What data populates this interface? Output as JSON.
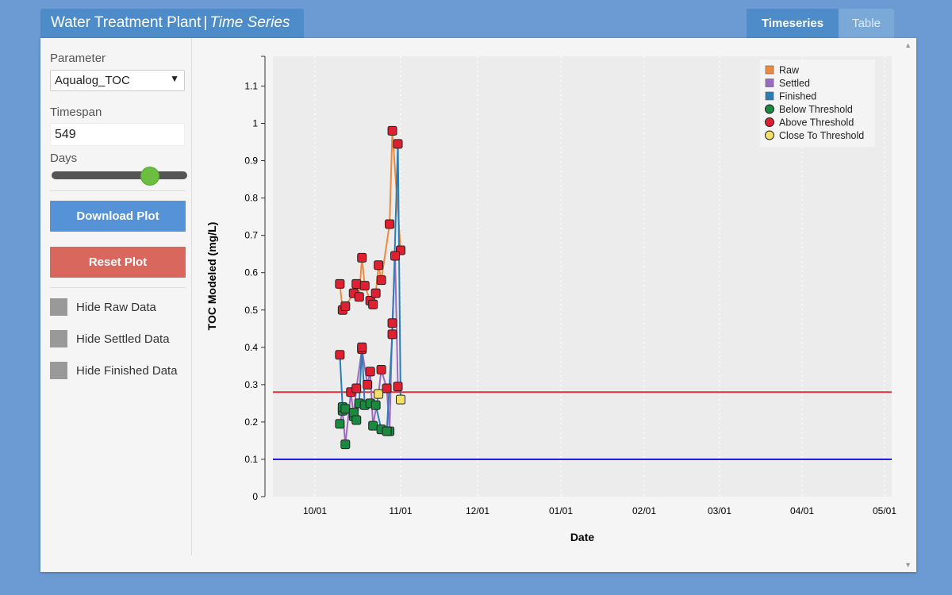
{
  "app": {
    "title_main": "Water Treatment Plant",
    "title_sep": "|",
    "title_sub": "Time Series"
  },
  "tabs": [
    {
      "label": "Timeseries",
      "active": true
    },
    {
      "label": "Table",
      "active": false
    }
  ],
  "sidebar": {
    "parameter_label": "Parameter",
    "parameter_value": "Aqualog_TOC",
    "timespan_label": "Timespan",
    "timespan_value": "549",
    "days_label": "Days",
    "slider_value": 549,
    "download_label": "Download Plot",
    "reset_label": "Reset Plot",
    "checkboxes": [
      {
        "label": "Hide Raw Data"
      },
      {
        "label": "Hide Settled Data"
      },
      {
        "label": "Hide Finished Data"
      }
    ]
  },
  "colors": {
    "raw": "#f0883e",
    "settled": "#9b6bbf",
    "finished": "#2a7db5",
    "below": "#1a8a40",
    "above": "#e02030",
    "close": "#f5e067",
    "upper_threshold": "#e0323c",
    "lower_threshold": "#2020e0"
  },
  "chart_data": {
    "type": "line",
    "xlabel": "Date",
    "ylabel": "TOC Modeled (mg/L)",
    "x_ticks": [
      "10/01",
      "11/01",
      "12/01",
      "01/01",
      "02/01",
      "03/01",
      "04/01",
      "05/01"
    ],
    "y_ticks": [
      "0",
      "0.1",
      "0.2",
      "0.3",
      "0.4",
      "0.5",
      "0.6",
      "0.7",
      "0.8",
      "0.9",
      "1",
      "1.1"
    ],
    "ylim": [
      0,
      1.18
    ],
    "grid": "vertical dotted",
    "legend_position": "top-right",
    "legend": [
      {
        "label": "Raw",
        "marker": "square",
        "color_key": "raw"
      },
      {
        "label": "Settled",
        "marker": "square",
        "color_key": "settled"
      },
      {
        "label": "Finished",
        "marker": "square",
        "color_key": "finished"
      },
      {
        "label": "Below Threshold",
        "marker": "circle",
        "color_key": "below"
      },
      {
        "label": "Above Threshold",
        "marker": "circle",
        "color_key": "above"
      },
      {
        "label": "Close To Threshold",
        "marker": "circle",
        "color_key": "close"
      }
    ],
    "thresholds": [
      {
        "value": 0.28,
        "color_key": "upper_threshold"
      },
      {
        "value": 0.1,
        "color_key": "lower_threshold"
      }
    ],
    "series": [
      {
        "name": "Raw",
        "color_key": "raw",
        "points": [
          {
            "date": "10/10",
            "y": 0.57,
            "status": "above"
          },
          {
            "date": "10/11",
            "y": 0.5,
            "status": "above"
          },
          {
            "date": "10/12",
            "y": 0.51,
            "status": "above"
          },
          {
            "date": "10/15",
            "y": 0.545,
            "status": "above"
          },
          {
            "date": "10/16",
            "y": 0.57,
            "status": "above"
          },
          {
            "date": "10/17",
            "y": 0.535,
            "status": "above"
          },
          {
            "date": "10/18",
            "y": 0.64,
            "status": "above"
          },
          {
            "date": "10/19",
            "y": 0.565,
            "status": "above"
          },
          {
            "date": "10/21",
            "y": 0.525,
            "status": "above"
          },
          {
            "date": "10/22",
            "y": 0.515,
            "status": "above"
          },
          {
            "date": "10/23",
            "y": 0.545,
            "status": "above"
          },
          {
            "date": "10/24",
            "y": 0.62,
            "status": "above"
          },
          {
            "date": "10/25",
            "y": 0.58,
            "status": "above"
          },
          {
            "date": "10/28",
            "y": 0.73,
            "status": "above"
          },
          {
            "date": "10/29",
            "y": 0.98,
            "status": "above"
          },
          {
            "date": "11/01",
            "y": 0.66,
            "status": "above"
          }
        ]
      },
      {
        "name": "Settled",
        "color_key": "settled",
        "points": [
          {
            "date": "10/10",
            "y": 0.195,
            "status": "below"
          },
          {
            "date": "10/11",
            "y": 0.23,
            "status": "below"
          },
          {
            "date": "10/12",
            "y": 0.14,
            "status": "below"
          },
          {
            "date": "10/14",
            "y": 0.28,
            "status": "above"
          },
          {
            "date": "10/15",
            "y": 0.215,
            "status": "below"
          },
          {
            "date": "10/16",
            "y": 0.29,
            "status": "above"
          },
          {
            "date": "10/18",
            "y": 0.395,
            "status": "above"
          },
          {
            "date": "10/20",
            "y": 0.3,
            "status": "above"
          },
          {
            "date": "10/21",
            "y": 0.335,
            "status": "above"
          },
          {
            "date": "10/22",
            "y": 0.19,
            "status": "below"
          },
          {
            "date": "10/24",
            "y": 0.275,
            "status": "close"
          },
          {
            "date": "10/25",
            "y": 0.34,
            "status": "above"
          },
          {
            "date": "10/27",
            "y": 0.29,
            "status": "above"
          },
          {
            "date": "10/28",
            "y": 0.175,
            "status": "below"
          },
          {
            "date": "10/29",
            "y": 0.465,
            "status": "above"
          },
          {
            "date": "10/30",
            "y": 0.645,
            "status": "above"
          },
          {
            "date": "10/31",
            "y": 0.295,
            "status": "above"
          }
        ]
      },
      {
        "name": "Finished",
        "color_key": "finished",
        "points": [
          {
            "date": "10/10",
            "y": 0.38,
            "status": "above"
          },
          {
            "date": "10/11",
            "y": 0.24,
            "status": "below"
          },
          {
            "date": "10/12",
            "y": 0.235,
            "status": "below"
          },
          {
            "date": "10/15",
            "y": 0.225,
            "status": "below"
          },
          {
            "date": "10/16",
            "y": 0.205,
            "status": "below"
          },
          {
            "date": "10/17",
            "y": 0.25,
            "status": "below"
          },
          {
            "date": "10/18",
            "y": 0.4,
            "status": "above"
          },
          {
            "date": "10/19",
            "y": 0.245,
            "status": "below"
          },
          {
            "date": "10/21",
            "y": 0.25,
            "status": "below"
          },
          {
            "date": "10/23",
            "y": 0.245,
            "status": "below"
          },
          {
            "date": "10/25",
            "y": 0.18,
            "status": "below"
          },
          {
            "date": "10/27",
            "y": 0.175,
            "status": "below"
          },
          {
            "date": "10/29",
            "y": 0.435,
            "status": "above"
          },
          {
            "date": "10/31",
            "y": 0.945,
            "status": "above"
          },
          {
            "date": "11/01",
            "y": 0.26,
            "status": "close"
          }
        ]
      }
    ]
  }
}
